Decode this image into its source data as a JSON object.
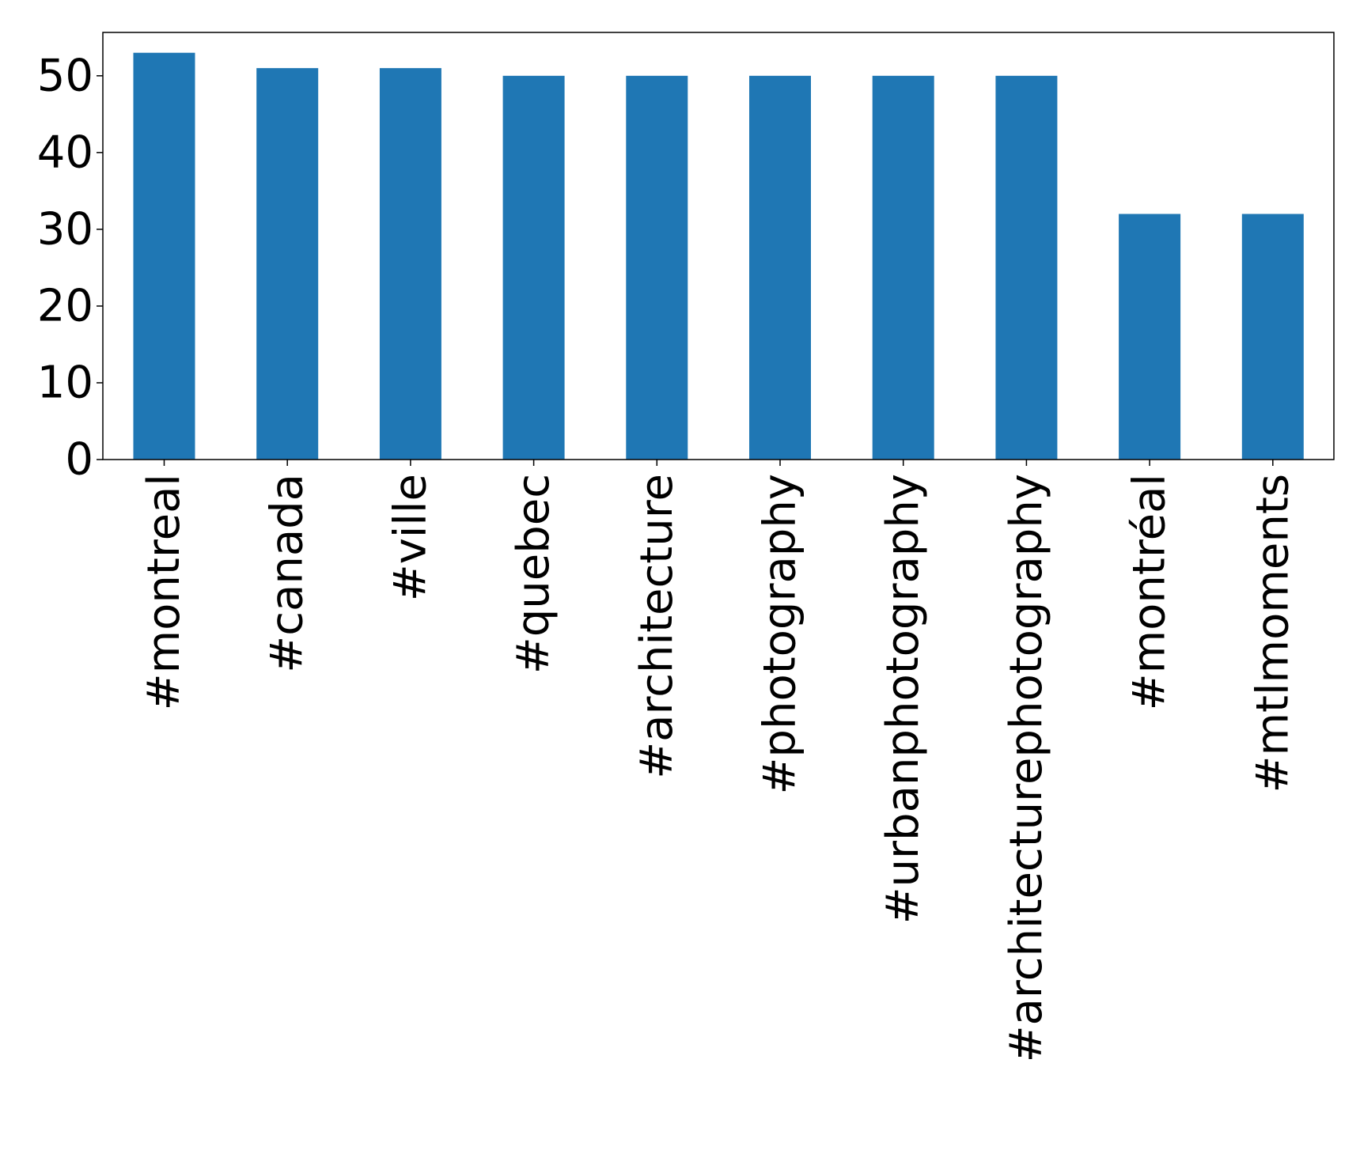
{
  "chart_data": {
    "type": "bar",
    "title": "",
    "xlabel": "",
    "ylabel": "",
    "categories": [
      "#montreal",
      "#canada",
      "#ville",
      "#quebec",
      "#architecture",
      "#photography",
      "#urbanphotography",
      "#architecturephotography",
      "#montréal",
      "#mtlmoments"
    ],
    "values": [
      53,
      51,
      51,
      50,
      50,
      50,
      50,
      50,
      32,
      32
    ],
    "ylim": [
      0,
      55.65
    ],
    "yticks": [
      0,
      10,
      20,
      30,
      40,
      50
    ],
    "bar_color": "#1f77b4",
    "grid": false,
    "legend": "none"
  }
}
